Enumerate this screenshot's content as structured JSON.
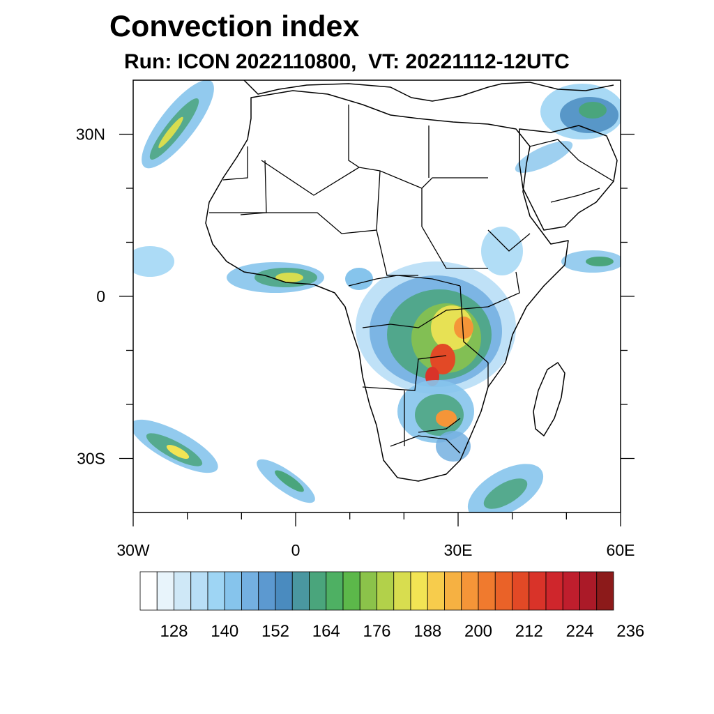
{
  "title": "Convection index",
  "subtitle": "Run: ICON 2022110800,  VT: 20221112-12UTC",
  "map": {
    "lon_range": [
      -30,
      60
    ],
    "lat_range": [
      -40,
      40
    ],
    "x_tick_labels": [
      {
        "lon": -30,
        "label": "30W"
      },
      {
        "lon": 0,
        "label": "0"
      },
      {
        "lon": 30,
        "label": "30E"
      },
      {
        "lon": 60,
        "label": "60E"
      }
    ],
    "y_tick_labels": [
      {
        "lat": 30,
        "label": "30N"
      },
      {
        "lat": 0,
        "label": "0"
      },
      {
        "lat": -30,
        "label": "30S"
      }
    ],
    "minor_lon_ticks": [
      -20,
      -10,
      10,
      20,
      40,
      50
    ],
    "minor_lat_ticks": [
      20,
      10,
      -10,
      -20
    ]
  },
  "colorbar": {
    "colors": [
      "#ffffff",
      "#e8f4fb",
      "#cfe8f7",
      "#b8def6",
      "#9ed5f4",
      "#86c4ec",
      "#74b0e1",
      "#5c99d0",
      "#4a8bbf",
      "#4a97a0",
      "#4aa57c",
      "#4eb063",
      "#5cb84a",
      "#8bc34a",
      "#b2d14a",
      "#d8dd4f",
      "#f2e454",
      "#f7cc4c",
      "#f6b142",
      "#f59538",
      "#f07a2e",
      "#ea6228",
      "#e24926",
      "#d93329",
      "#cf262c",
      "#bf1e2d",
      "#ab1a28",
      "#8c1a1a"
    ],
    "labels": [
      "128",
      "140",
      "152",
      "164",
      "176",
      "188",
      "200",
      "212",
      "224",
      "236"
    ]
  }
}
